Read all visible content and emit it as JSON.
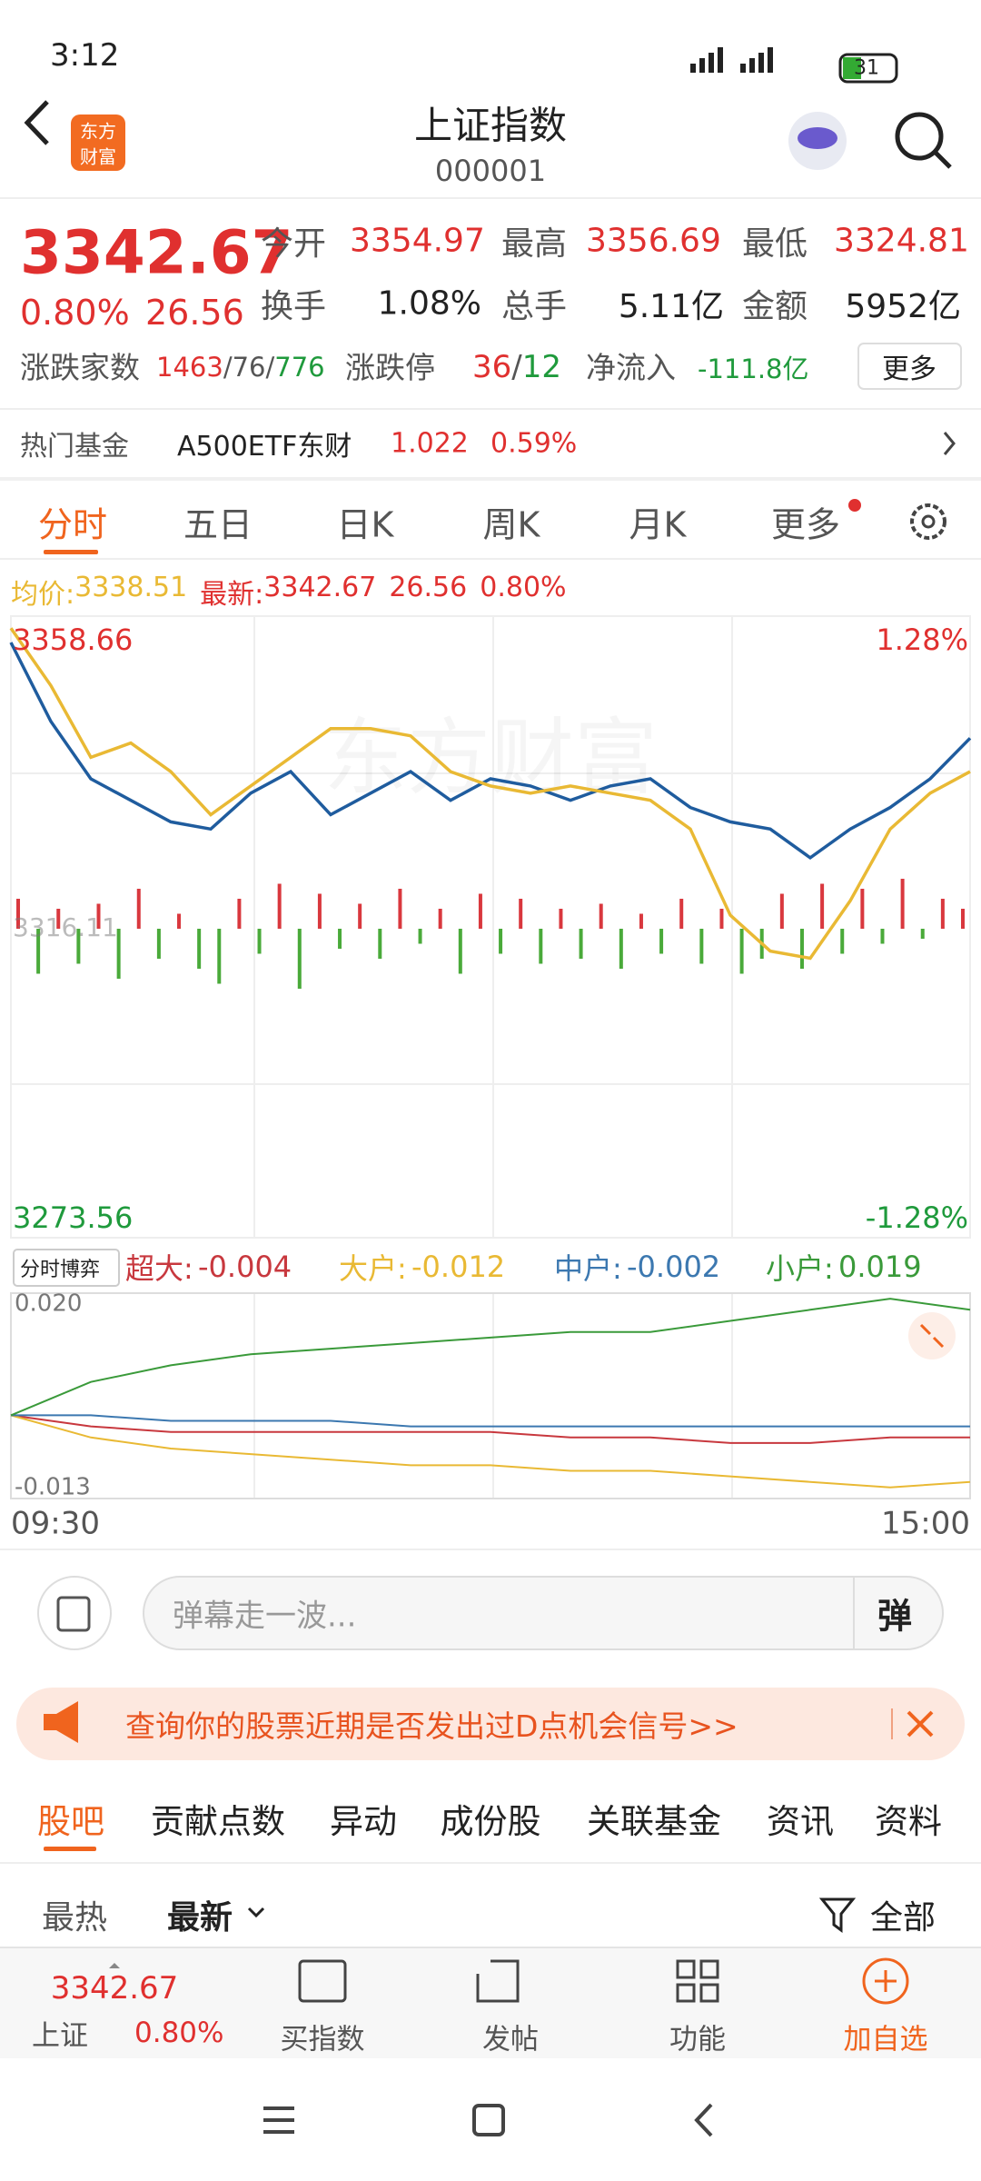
{
  "status_bar": {
    "time": "3:12",
    "battery": "31"
  },
  "header": {
    "title": "上证指数",
    "code": "000001",
    "logo": [
      "东方",
      "财富"
    ]
  },
  "quote": {
    "price": "3342.67",
    "change_pct": "0.80%",
    "change": "26.56",
    "stats": [
      {
        "label": "今开",
        "value": "3354.97"
      },
      {
        "label": "最高",
        "value": "3356.69"
      },
      {
        "label": "最低",
        "value": "3324.81"
      },
      {
        "label": "换手",
        "value": "1.08%"
      },
      {
        "label": "总手",
        "value": "5.11亿"
      },
      {
        "label": "金额",
        "value": "5952亿"
      }
    ],
    "breadth": {
      "label": "涨跌家数",
      "up": "1463",
      "flat": "76",
      "down": "776",
      "sep": "/"
    },
    "limit": {
      "label": "涨跌停",
      "up": "36",
      "down": "12"
    },
    "net_inflow": {
      "label": "净流入",
      "value": "-111.8亿"
    },
    "more": "更多"
  },
  "hot_fund": {
    "label": "热门基金",
    "name": "A500ETF东财",
    "price": "1.022",
    "change": "0.59%"
  },
  "chart_tabs": [
    "分时",
    "五日",
    "日K",
    "周K",
    "月K",
    "更多"
  ],
  "info_line": {
    "avg_label": "均价:",
    "avg": "3338.51",
    "latest_label": "最新:",
    "latest": "3342.67",
    "change": "26.56",
    "pct": "0.80%"
  },
  "price_chart": {
    "type": "line",
    "watermark": "东方财富",
    "ylim": [
      3273.56,
      3358.66
    ],
    "pct_labels": [
      "-1.28%",
      "1.28%"
    ],
    "prev_close": 3316.11,
    "series": [
      {
        "color": "#1f5c9e",
        "values": [
          3356,
          3345,
          3337,
          3334,
          3331,
          3330,
          3335,
          3338,
          3332,
          3335,
          3338,
          3334,
          3337,
          3336,
          3334,
          3336,
          3337,
          3333,
          3331,
          3330,
          3326,
          3330,
          3333,
          3337,
          3342.67
        ]
      },
      {
        "color": "#e9b934",
        "values": [
          3358,
          3350,
          3340,
          3342,
          3338,
          3332,
          3336,
          3340,
          3344,
          3344,
          3343,
          3338,
          3336,
          3335,
          3336,
          3335,
          3334,
          3330,
          3318,
          3313,
          3312,
          3320,
          3330,
          3335,
          3338
        ]
      }
    ],
    "volume": {
      "up_color": "#d9383e",
      "down_color": "#4aaa3a",
      "values": [
        30,
        -45,
        20,
        -35,
        25,
        -50,
        40,
        -30,
        15,
        -40,
        -55,
        30,
        -25,
        45,
        -60,
        35,
        -20,
        25,
        -30,
        40,
        -15,
        20,
        -45,
        35,
        -25,
        30,
        -35,
        20,
        -30,
        25,
        -40,
        15,
        -25,
        30,
        -35,
        20,
        -45,
        -30,
        35,
        -40,
        45,
        -25,
        40,
        -15,
        50,
        -10,
        30,
        20
      ]
    }
  },
  "flow_chart": {
    "type": "line",
    "selector": "分时博弈",
    "ylim": [
      -0.015,
      0.022
    ],
    "yticks": [
      {
        "value": 0.02,
        "label": "0.020"
      },
      -0.013
    ],
    "xticks": [
      "09:30",
      "15:00"
    ],
    "series": [
      {
        "name": "超大:",
        "value": -0.004,
        "color": "#c8383e",
        "values": [
          0,
          -0.002,
          -0.003,
          -0.003,
          -0.003,
          -0.003,
          -0.003,
          -0.004,
          -0.004,
          -0.005,
          -0.005,
          -0.004,
          -0.004
        ]
      },
      {
        "name": "大户:",
        "value": -0.012,
        "color": "#e9b934",
        "values": [
          0,
          -0.004,
          -0.006,
          -0.007,
          -0.008,
          -0.009,
          -0.009,
          -0.01,
          -0.01,
          -0.011,
          -0.012,
          -0.013,
          -0.012
        ]
      },
      {
        "name": "中户:",
        "value": -0.002,
        "color": "#3c78b0",
        "values": [
          0,
          0,
          -0.001,
          -0.001,
          -0.001,
          -0.002,
          -0.002,
          -0.002,
          -0.002,
          -0.002,
          -0.002,
          -0.002,
          -0.002
        ]
      },
      {
        "name": "小户:",
        "value": 0.019,
        "color": "#3a9a3a",
        "values": [
          0,
          0.006,
          0.009,
          0.011,
          0.012,
          0.013,
          0.014,
          0.015,
          0.015,
          0.017,
          0.019,
          0.021,
          0.019
        ]
      }
    ]
  },
  "comment": {
    "placeholder": "弹幕走一波...",
    "button": "弹"
  },
  "banner": "查询你的股票近期是否发出过D点机会信号>>",
  "community_tabs": [
    "股吧",
    "贡献点数",
    "异动",
    "成份股",
    "关联基金",
    "资讯",
    "资料"
  ],
  "sort": {
    "hot": "最热",
    "new": "最新",
    "all": "全部"
  },
  "bottom_bar": {
    "price": "3342.67",
    "index": "上证",
    "pct": "0.80%",
    "items": [
      "买指数",
      "发帖",
      "功能",
      "加自选"
    ]
  }
}
